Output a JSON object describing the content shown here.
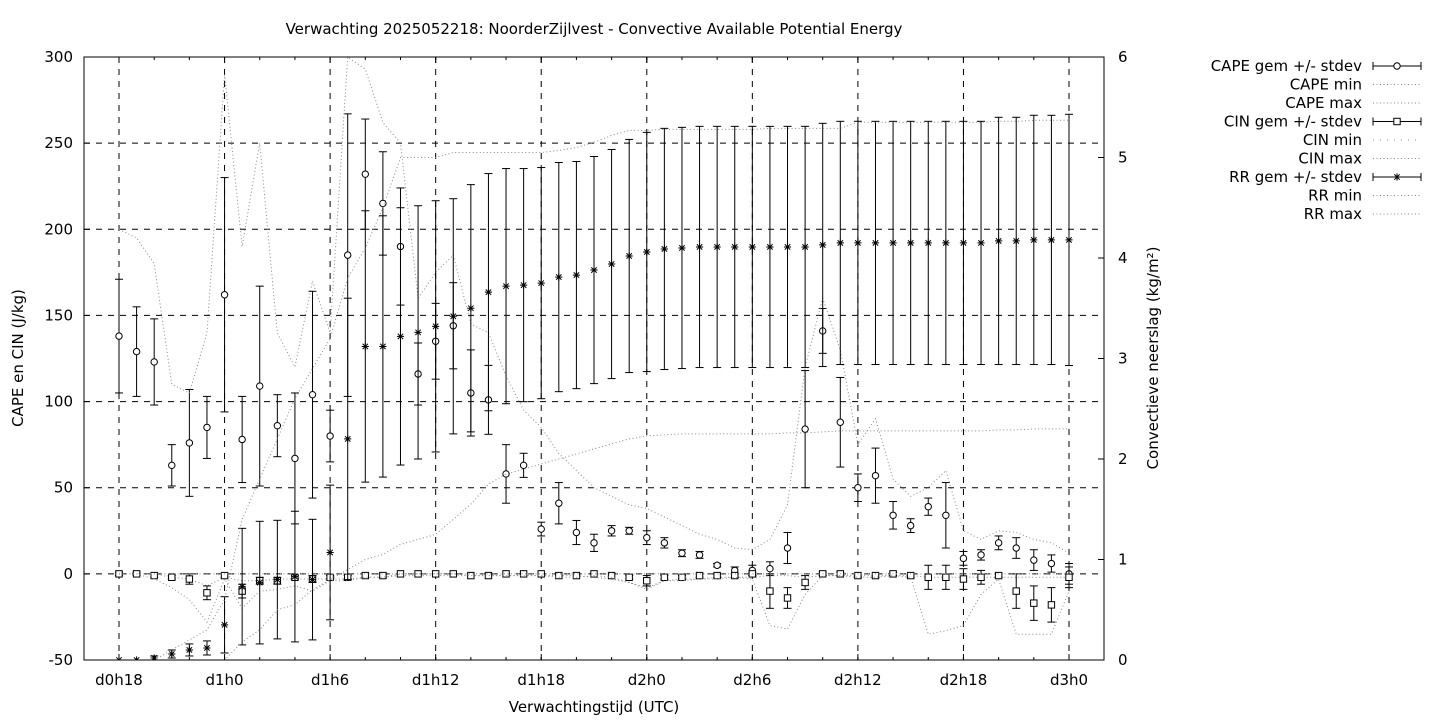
{
  "chart_data": {
    "type": "line",
    "title": "Verwachting 2025052218: NoorderZijlvest - Convective Available Potential Energy",
    "xlabel": "Verwachtingstijd (UTC)",
    "ylabel": "CAPE en CIN (J/kg)",
    "y2label": "Convectieve neerslag (kg/m²)",
    "xlim": [
      0,
      54
    ],
    "ylim": [
      -50,
      300
    ],
    "y2lim": [
      0,
      6
    ],
    "grid": true,
    "legend_position": "outside-top-right",
    "x_ticks": [
      {
        "x": 0,
        "label": "d0h18"
      },
      {
        "x": 6,
        "label": "d1h0"
      },
      {
        "x": 12,
        "label": "d1h6"
      },
      {
        "x": 18,
        "label": "d1h12"
      },
      {
        "x": 24,
        "label": "d1h18"
      },
      {
        "x": 30,
        "label": "d2h0"
      },
      {
        "x": 36,
        "label": "d2h6"
      },
      {
        "x": 42,
        "label": "d2h12"
      },
      {
        "x": 48,
        "label": "d2h18"
      },
      {
        "x": 54,
        "label": "d3h0"
      }
    ],
    "y_ticks": [
      -50,
      0,
      50,
      100,
      150,
      200,
      250,
      300
    ],
    "y2_ticks": [
      0,
      1,
      2,
      3,
      4,
      5,
      6
    ],
    "x": [
      0,
      1,
      2,
      3,
      4,
      5,
      6,
      7,
      8,
      9,
      10,
      11,
      12,
      13,
      14,
      15,
      16,
      17,
      18,
      19,
      20,
      21,
      22,
      23,
      24,
      25,
      26,
      27,
      28,
      29,
      30,
      31,
      32,
      33,
      34,
      35,
      36,
      37,
      38,
      39,
      40,
      41,
      42,
      43,
      44,
      45,
      46,
      47,
      48,
      49,
      50,
      51,
      52,
      53,
      54
    ],
    "series": [
      {
        "name": "CAPE gem +/- stdev",
        "axis": "y",
        "marker": "circle",
        "mean": [
          138,
          129,
          123,
          63,
          76,
          85,
          162,
          78,
          109,
          86,
          67,
          104,
          80,
          185,
          232,
          215,
          190,
          116,
          135,
          144,
          105,
          101,
          58,
          63,
          26,
          41,
          24,
          18,
          25,
          25,
          21,
          18,
          12,
          11,
          5,
          2,
          2,
          3,
          15,
          84,
          141,
          88,
          50,
          57,
          34,
          28,
          39,
          34,
          9,
          11,
          18,
          15,
          8,
          6,
          0
        ],
        "sd": [
          33,
          26,
          25,
          12,
          31,
          18,
          68,
          25,
          58,
          18,
          38,
          60,
          15,
          82,
          32,
          30,
          34,
          18,
          22,
          25,
          25,
          20,
          17,
          7,
          4,
          12,
          7,
          5,
          3,
          2,
          4,
          3,
          2,
          2,
          1,
          2,
          3,
          4,
          9,
          34,
          13,
          26,
          8,
          16,
          8,
          4,
          5,
          19,
          4,
          3,
          4,
          6,
          6,
          5,
          6
        ]
      },
      {
        "name": "CAPE min",
        "axis": "y",
        "style": "dotted",
        "values": [
          0,
          0,
          0,
          -2,
          -3,
          -7,
          -2,
          -4,
          -4,
          -3,
          -3,
          -3,
          -3,
          -3,
          -2,
          -2,
          -1,
          -1,
          -1,
          -1,
          -1,
          -1,
          -1,
          -1,
          -1,
          -1,
          -1,
          -2,
          -3,
          -5,
          -8,
          -4,
          -3,
          -3,
          -2,
          -2,
          -2,
          -1,
          -1,
          -2,
          -1,
          -1,
          -1,
          -1,
          -1,
          -1,
          -2,
          -2,
          -2,
          -2,
          -2,
          -2,
          -2,
          -2,
          -2
        ]
      },
      {
        "name": "CAPE max",
        "axis": "y",
        "style": "dotted",
        "values": [
          200,
          195,
          180,
          110,
          105,
          140,
          290,
          190,
          250,
          140,
          120,
          170,
          140,
          300,
          293,
          262,
          250,
          160,
          175,
          185,
          145,
          140,
          115,
          95,
          85,
          70,
          60,
          50,
          45,
          40,
          38,
          33,
          28,
          23,
          20,
          15,
          14,
          20,
          40,
          120,
          160,
          130,
          75,
          90,
          55,
          45,
          50,
          60,
          25,
          20,
          25,
          24,
          20,
          18,
          12
        ]
      },
      {
        "name": "CIN gem +/- stdev",
        "axis": "y",
        "marker": "square",
        "mean": [
          0,
          0,
          -1,
          -2,
          -3,
          -11,
          -1,
          -10,
          -4,
          -4,
          -2,
          -3,
          -2,
          -2,
          -1,
          -1,
          0,
          0,
          0,
          0,
          -1,
          -1,
          0,
          0,
          0,
          -1,
          -1,
          0,
          -1,
          -2,
          -4,
          -2,
          -2,
          -1,
          -1,
          -1,
          0,
          -10,
          -14,
          -5,
          0,
          0,
          -1,
          -1,
          0,
          -1,
          -2,
          -2,
          -3,
          -2,
          -1,
          -10,
          -17,
          -18,
          -2
        ],
        "sd": [
          1,
          1,
          1,
          1,
          3,
          4,
          1,
          4,
          2,
          2,
          1,
          2,
          1,
          1,
          1,
          1,
          0,
          0,
          0,
          0,
          0,
          0,
          0,
          0,
          0,
          0,
          0,
          0,
          0,
          1,
          3,
          1,
          1,
          1,
          1,
          1,
          1,
          10,
          6,
          4,
          1,
          1,
          1,
          1,
          1,
          1,
          7,
          7,
          6,
          4,
          1,
          10,
          10,
          10,
          6
        ]
      },
      {
        "name": "CIN min",
        "axis": "y",
        "style": "dotted",
        "values": [
          0,
          0,
          -3,
          -8,
          -15,
          -28,
          -3,
          -20,
          -10,
          -9,
          -7,
          -10,
          -4,
          -4,
          -2,
          -2,
          0,
          0,
          0,
          0,
          -1,
          -1,
          -1,
          -1,
          -1,
          -2,
          -2,
          -1,
          -2,
          -5,
          -9,
          -4,
          -4,
          -3,
          -3,
          -2,
          -3,
          -30,
          -32,
          -12,
          -1,
          -1,
          -2,
          -2,
          -1,
          -2,
          -35,
          -33,
          -30,
          -12,
          -3,
          -35,
          -35,
          -35,
          -10
        ]
      },
      {
        "name": "CIN max",
        "axis": "y",
        "style": "dotted",
        "values": [
          0,
          0,
          0,
          0,
          0,
          0,
          0,
          0,
          0,
          0,
          0,
          0,
          0,
          0,
          0,
          0,
          0,
          0,
          0,
          0,
          0,
          0,
          0,
          0,
          0,
          0,
          0,
          0,
          0,
          0,
          0,
          0,
          0,
          0,
          0,
          0,
          0,
          0,
          0,
          0,
          0,
          0,
          0,
          0,
          0,
          0,
          0,
          0,
          0,
          0,
          0,
          0,
          0,
          0,
          0
        ]
      },
      {
        "name": "RR gem +/- stdev",
        "axis": "y2",
        "marker": "star",
        "mean": [
          0.0,
          0.0,
          0.02,
          0.06,
          0.1,
          0.12,
          0.35,
          0.73,
          0.77,
          0.8,
          0.83,
          0.8,
          1.07,
          2.2,
          3.12,
          3.12,
          3.22,
          3.26,
          3.32,
          3.42,
          3.5,
          3.66,
          3.72,
          3.73,
          3.75,
          3.81,
          3.83,
          3.88,
          3.94,
          4.02,
          4.06,
          4.09,
          4.1,
          4.11,
          4.11,
          4.11,
          4.11,
          4.11,
          4.11,
          4.11,
          4.13,
          4.15,
          4.15,
          4.15,
          4.15,
          4.15,
          4.15,
          4.15,
          4.15,
          4.15,
          4.17,
          4.17,
          4.18,
          4.18,
          4.18
        ],
        "sd": [
          0.0,
          0.0,
          0.02,
          0.04,
          0.06,
          0.07,
          0.28,
          0.58,
          0.61,
          0.59,
          0.65,
          0.6,
          0.67,
          1.4,
          1.35,
          1.3,
          1.28,
          1.26,
          1.25,
          1.17,
          1.23,
          1.18,
          1.17,
          1.16,
          1.15,
          1.14,
          1.13,
          1.13,
          1.14,
          1.16,
          1.19,
          1.2,
          1.2,
          1.2,
          1.2,
          1.2,
          1.2,
          1.2,
          1.2,
          1.2,
          1.21,
          1.21,
          1.21,
          1.21,
          1.21,
          1.21,
          1.21,
          1.21,
          1.21,
          1.21,
          1.23,
          1.23,
          1.24,
          1.24,
          1.25
        ]
      },
      {
        "name": "RR min",
        "axis": "y2",
        "style": "dotted",
        "values": [
          0,
          0,
          0,
          0,
          0,
          0,
          0,
          0.18,
          0.3,
          0.5,
          0.55,
          0.7,
          0.8,
          0.9,
          1.0,
          1.05,
          1.15,
          1.2,
          1.25,
          1.4,
          1.55,
          1.75,
          1.85,
          1.9,
          1.95,
          2.0,
          2.05,
          2.1,
          2.15,
          2.2,
          2.23,
          2.24,
          2.25,
          2.25,
          2.25,
          2.25,
          2.25,
          2.25,
          2.26,
          2.26,
          2.27,
          2.28,
          2.28,
          2.28,
          2.28,
          2.28,
          2.28,
          2.28,
          2.28,
          2.28,
          2.29,
          2.29,
          2.3,
          2.3,
          2.3
        ]
      },
      {
        "name": "RR max",
        "axis": "y2",
        "style": "dotted",
        "values": [
          0,
          0,
          0,
          0.1,
          0.2,
          0.3,
          0.6,
          1.4,
          1.8,
          2.2,
          2.6,
          2.9,
          3.2,
          3.8,
          4.1,
          4.5,
          5.0,
          5.0,
          5.0,
          5.05,
          5.05,
          5.05,
          5.05,
          5.05,
          5.05,
          5.07,
          5.1,
          5.15,
          5.22,
          5.27,
          5.27,
          5.28,
          5.28,
          5.28,
          5.28,
          5.28,
          5.28,
          5.29,
          5.29,
          5.29,
          5.29,
          5.29,
          5.35,
          5.35,
          5.35,
          5.35,
          5.35,
          5.35,
          5.35,
          5.35,
          5.36,
          5.36,
          5.37,
          5.37,
          5.37
        ]
      }
    ]
  }
}
